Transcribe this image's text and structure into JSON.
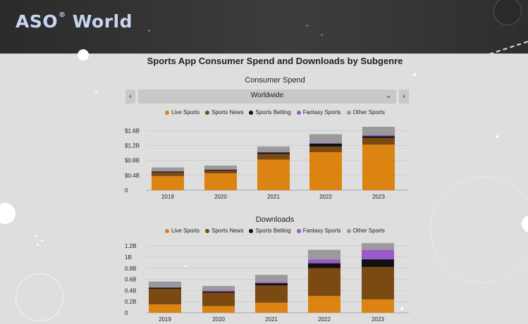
{
  "brand": {
    "logo_text": "ASO",
    "logo_text2": "World",
    "logo_sup": "®"
  },
  "page": {
    "title": "Sports App Consumer Spend and Downloads by Subgenre",
    "spend_subtitle": "Consumer Spend",
    "downloads_subtitle": "Downloads"
  },
  "controls": {
    "prev_label": "‹",
    "next_label": "›",
    "region_value": "Worldwide",
    "caret": "⌄"
  },
  "colors": {
    "Live Sports": "#dc8411",
    "Sports News": "#7a4a12",
    "Sports Betting": "#111111",
    "Fantasy Sports": "#9b59c9",
    "Other Sports": "#9a9a9a"
  },
  "legend": [
    "Live Sports",
    "Sports News",
    "Sports Betting",
    "Fantasy Sports",
    "Other Sports"
  ],
  "chart_data": [
    {
      "type": "bar",
      "stacked": true,
      "title": "Consumer Spend",
      "categories": [
        "2019",
        "2020",
        "2021",
        "2022",
        "2023"
      ],
      "yticks": [
        "0",
        "$0.4B",
        "$0.8B",
        "$1.2B",
        "$1.6B"
      ],
      "ylim": [
        0,
        1.7
      ],
      "series": [
        {
          "name": "Live Sports",
          "values": [
            0.38,
            0.45,
            0.82,
            1.02,
            1.22
          ]
        },
        {
          "name": "Sports News",
          "values": [
            0.1,
            0.08,
            0.15,
            0.15,
            0.18
          ]
        },
        {
          "name": "Sports Betting",
          "values": [
            0.02,
            0.02,
            0.04,
            0.08,
            0.05
          ]
        },
        {
          "name": "Fantasy Sports",
          "values": [
            0.01,
            0.01,
            0.01,
            0.02,
            0.03
          ]
        },
        {
          "name": "Other Sports",
          "values": [
            0.1,
            0.1,
            0.15,
            0.23,
            0.22
          ]
        }
      ]
    },
    {
      "type": "bar",
      "stacked": true,
      "title": "Downloads",
      "categories": [
        "2019",
        "2020",
        "2021",
        "2022",
        "2023"
      ],
      "yticks": [
        "0",
        "0.2B",
        "0.4B",
        "0.6B",
        "0.8B",
        "1B",
        "1.2B"
      ],
      "ylim": [
        0,
        1.24
      ],
      "series": [
        {
          "name": "Live Sports",
          "values": [
            0.15,
            0.12,
            0.18,
            0.3,
            0.24
          ]
        },
        {
          "name": "Sports News",
          "values": [
            0.28,
            0.24,
            0.31,
            0.5,
            0.58
          ]
        },
        {
          "name": "Sports Betting",
          "values": [
            0.02,
            0.02,
            0.04,
            0.09,
            0.14
          ]
        },
        {
          "name": "Fantasy Sports",
          "values": [
            0.01,
            0.02,
            0.02,
            0.07,
            0.17
          ]
        },
        {
          "name": "Other Sports",
          "values": [
            0.1,
            0.08,
            0.13,
            0.17,
            0.12
          ]
        }
      ]
    }
  ]
}
